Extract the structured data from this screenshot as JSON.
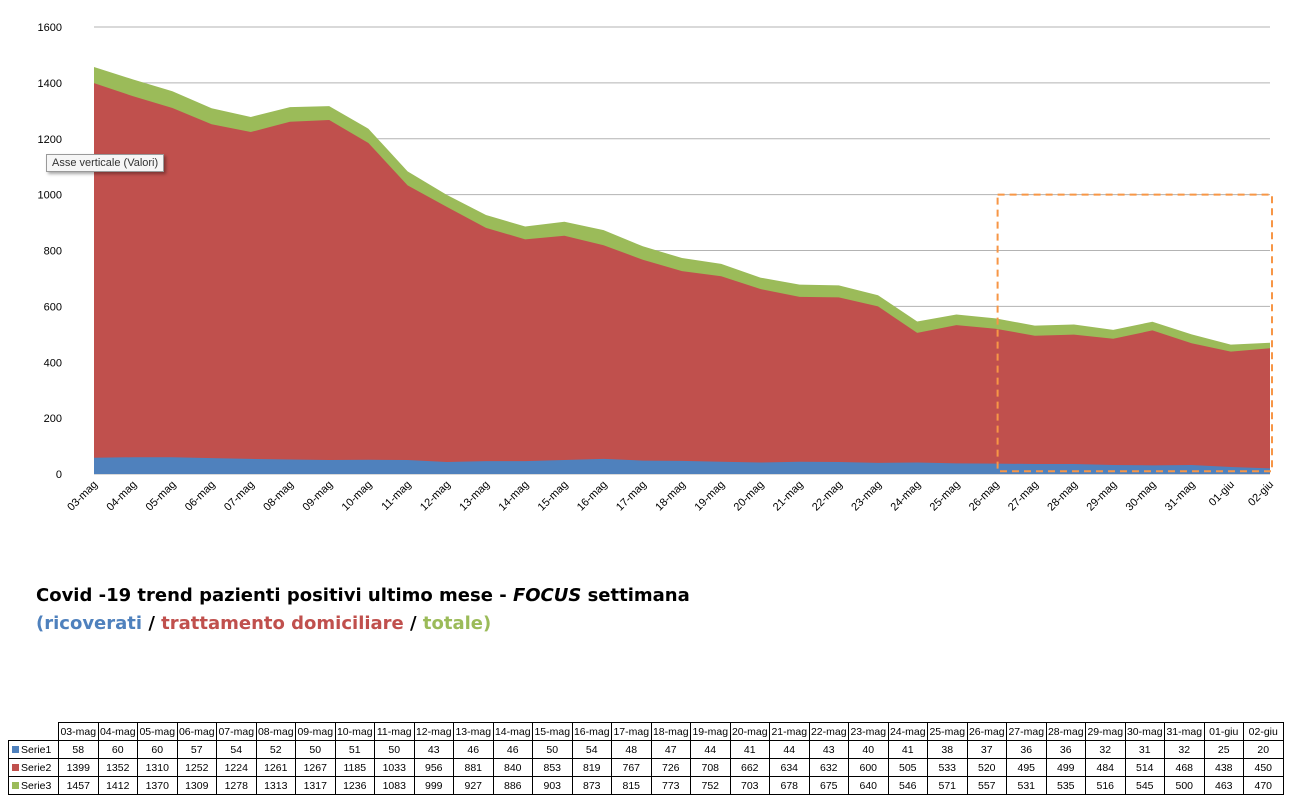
{
  "tooltip": "Asse verticale (Valori)",
  "caption": {
    "line1_a": "Covid -19 trend pazienti positivi ultimo mese - ",
    "line1_focus": "FOCUS",
    "line1_b": " settimana",
    "open_paren": "(",
    "ricoverati": "ricoverati",
    "slash1": " / ",
    "trattamento": "trattamento domiciliare",
    "slash2": " / ",
    "totale": "totale",
    "close_paren": ")"
  },
  "colors": {
    "serie1": "#4f81bd",
    "serie2": "#c0504d",
    "serie3": "#9bbb59",
    "focus_box": "#f79646",
    "grid": "#b3b3b3"
  },
  "chart_data": {
    "type": "area",
    "categories": [
      "03-mag",
      "04-mag",
      "05-mag",
      "06-mag",
      "07-mag",
      "08-mag",
      "09-mag",
      "10-mag",
      "11-mag",
      "12-mag",
      "13-mag",
      "14-mag",
      "15-mag",
      "16-mag",
      "17-mag",
      "18-mag",
      "19-mag",
      "20-mag",
      "21-mag",
      "22-mag",
      "23-mag",
      "24-mag",
      "25-mag",
      "26-mag",
      "27-mag",
      "28-mag",
      "29-mag",
      "30-mag",
      "31-mag",
      "01-giu",
      "02-giu"
    ],
    "yticks": [
      "0",
      "200",
      "400",
      "600",
      "800",
      "1000",
      "1200",
      "1400",
      "1600"
    ],
    "ylim": [
      0,
      1600
    ],
    "grid": true,
    "series": [
      {
        "name": "Serie1",
        "color": "#4f81bd",
        "values": [
          58,
          60,
          60,
          57,
          54,
          52,
          50,
          51,
          50,
          43,
          46,
          46,
          50,
          54,
          48,
          47,
          44,
          41,
          44,
          43,
          40,
          41,
          38,
          37,
          36,
          36,
          32,
          31,
          32,
          25,
          20
        ]
      },
      {
        "name": "Serie2",
        "color": "#c0504d",
        "values": [
          1399,
          1352,
          1310,
          1252,
          1224,
          1261,
          1267,
          1185,
          1033,
          956,
          881,
          840,
          853,
          819,
          767,
          726,
          708,
          662,
          634,
          632,
          600,
          505,
          533,
          520,
          495,
          499,
          484,
          514,
          468,
          438,
          450
        ]
      },
      {
        "name": "Serie3",
        "color": "#9bbb59",
        "values": [
          1457,
          1412,
          1370,
          1309,
          1278,
          1313,
          1317,
          1236,
          1083,
          999,
          927,
          886,
          903,
          873,
          815,
          773,
          752,
          703,
          678,
          675,
          640,
          546,
          571,
          557,
          531,
          535,
          516,
          545,
          500,
          463,
          470
        ]
      }
    ],
    "focus_range": {
      "from": "26-mag",
      "to": "02-giu",
      "y_top": 1000,
      "y_bottom": 10
    }
  }
}
